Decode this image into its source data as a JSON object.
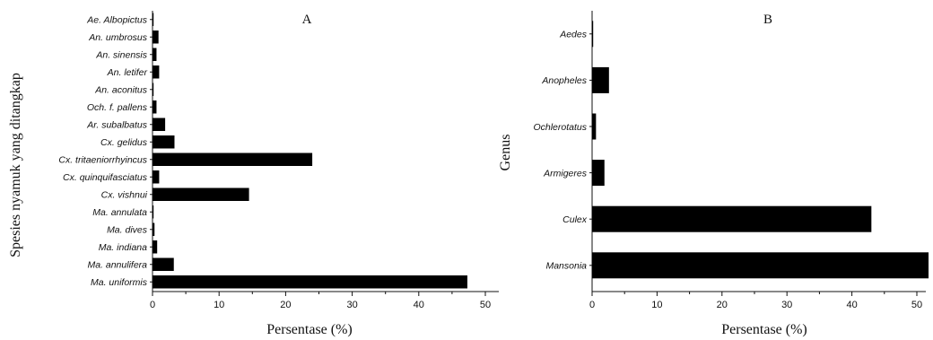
{
  "chart_data": [
    {
      "type": "bar",
      "orientation": "horizontal",
      "title": "A",
      "xlabel": "Persentase (%)",
      "ylabel": "Spesies nyamuk yang ditangkap",
      "xlim": [
        0,
        52
      ],
      "xticks": [
        0,
        10,
        20,
        30,
        40,
        50
      ],
      "grid": false,
      "categories": [
        "Ae. Albopictus",
        "An. umbrosus",
        "An. sinensis",
        "An. letifer",
        "An. aconitus",
        "Och. f. pallens",
        "Ar. subalbatus",
        "Cx. gelidus",
        "Cx. tritaeniorrhyincus",
        "Cx. quinquifasciatus",
        "Cx. vishnui",
        "Ma. annulata",
        "Ma. dives",
        "Ma. indiana",
        "Ma. annulifera",
        "Ma. uniformis"
      ],
      "values": [
        0.1,
        0.9,
        0.6,
        1.0,
        0.1,
        0.6,
        1.9,
        3.3,
        24.0,
        1.0,
        14.5,
        0.1,
        0.3,
        0.7,
        3.2,
        47.3
      ]
    },
    {
      "type": "bar",
      "orientation": "horizontal",
      "title": "B",
      "xlabel": "Persentase (%)",
      "ylabel": "Genus",
      "xlim": [
        0,
        53
      ],
      "xticks": [
        0,
        10,
        20,
        30,
        40,
        50
      ],
      "grid": false,
      "categories": [
        "Aedes",
        "Anopheles",
        "Ochlerotatus",
        "Armigeres",
        "Culex",
        "Mansonia"
      ],
      "values": [
        0.1,
        2.6,
        0.6,
        1.9,
        43.0,
        51.8
      ]
    }
  ]
}
